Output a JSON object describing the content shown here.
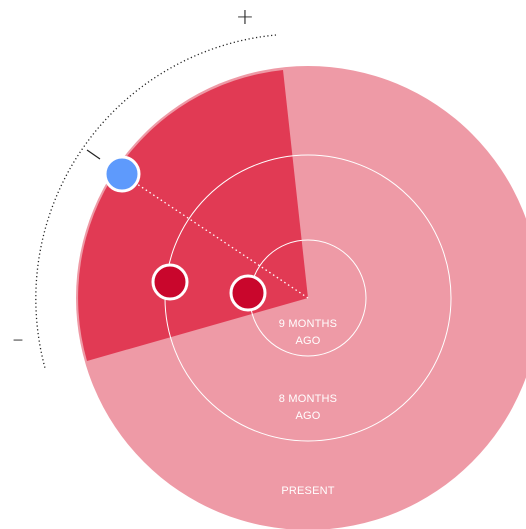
{
  "colors": {
    "background": "#ffffff",
    "disc": "#ee9aa6",
    "sector": "#e13a54",
    "ring_line": "#ffffff",
    "marker_red": "#c9062c",
    "marker_blue": "#5e9afc",
    "marker_stroke": "#ffffff",
    "scale_line": "#222222",
    "sign_text": "#222222",
    "ring_text": "#ffffff"
  },
  "scale": {
    "plus_sign": "+",
    "minus_sign": "–"
  },
  "rings": [
    {
      "line1": "9 MONTHS",
      "line2": "AGO"
    },
    {
      "line1": "8 MONTHS",
      "line2": "AGO"
    },
    {
      "line1": "PRESENT",
      "line2": ""
    }
  ],
  "markers": [
    {
      "color": "red"
    },
    {
      "color": "red"
    },
    {
      "color": "blue"
    }
  ]
}
